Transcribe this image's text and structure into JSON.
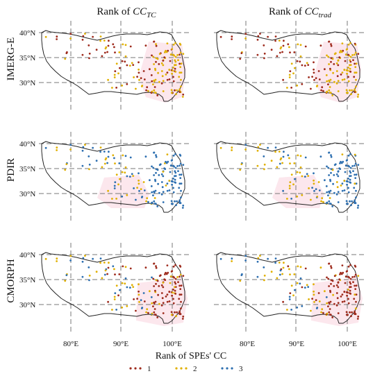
{
  "figure": {
    "columns": [
      {
        "prefix": "Rank of ",
        "symbol": "CC",
        "sub": "TC"
      },
      {
        "prefix": "Rank of ",
        "symbol": "CC",
        "sub": "trad"
      }
    ],
    "rows": [
      "IMERG-E",
      "PDIR",
      "CMORPH"
    ],
    "lat_ticks": [
      "40°N",
      "35°N",
      "30°N"
    ],
    "lon_ticks": [
      "80°E",
      "90°E",
      "100°E"
    ],
    "legend": {
      "title": "Rank of SPEs' CC",
      "items": [
        {
          "label": "1",
          "color": "#9e2a1c"
        },
        {
          "label": "2",
          "color": "#e0b000"
        },
        {
          "label": "3",
          "color": "#2d6fb0"
        }
      ]
    }
  },
  "map_extent": {
    "lon": [
      73.5,
      104.5
    ],
    "lat": [
      25.5,
      41.0
    ]
  },
  "gridlines": {
    "lon": [
      80,
      90,
      100
    ],
    "lat": [
      30,
      35,
      40
    ]
  }
}
